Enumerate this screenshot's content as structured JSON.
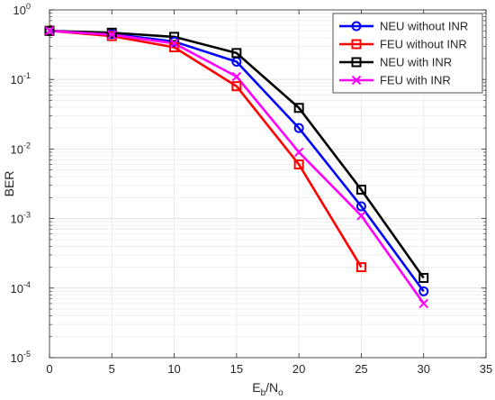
{
  "chart_data": {
    "type": "line",
    "title": "",
    "xlabel": {
      "main": "E",
      "sub1": "b",
      "mid": "/N",
      "sub2": "o"
    },
    "ylabel": "BER",
    "xlim": [
      0,
      35
    ],
    "ylim": [
      1e-05,
      1
    ],
    "yscale": "log",
    "grid": true,
    "legend_position": "top-right",
    "x_ticks": [
      0,
      5,
      10,
      15,
      20,
      25,
      30,
      35
    ],
    "x_tick_labels": [
      "0",
      "5",
      "10",
      "15",
      "20",
      "25",
      "30",
      "35"
    ],
    "y_ticks": [
      {
        "value": 1e-05,
        "base": "10",
        "exp": "-5"
      },
      {
        "value": 0.0001,
        "base": "10",
        "exp": "-4"
      },
      {
        "value": 0.001,
        "base": "10",
        "exp": "-3"
      },
      {
        "value": 0.01,
        "base": "10",
        "exp": "-2"
      },
      {
        "value": 0.1,
        "base": "10",
        "exp": "-1"
      },
      {
        "value": 1,
        "base": "10",
        "exp": "0"
      }
    ],
    "series": [
      {
        "name": "NEU without INR",
        "color": "#0000ff",
        "marker": "circle",
        "x": [
          0,
          5,
          10,
          15,
          20,
          25,
          30
        ],
        "y": [
          0.5,
          0.45,
          0.35,
          0.18,
          0.02,
          0.0015,
          9e-05
        ]
      },
      {
        "name": "FEU without INR",
        "color": "#ff0000",
        "marker": "square",
        "x": [
          0,
          5,
          10,
          15,
          20,
          25
        ],
        "y": [
          0.5,
          0.42,
          0.29,
          0.08,
          0.006,
          0.0002
        ]
      },
      {
        "name": "NEU with INR",
        "color": "#000000",
        "marker": "square",
        "x": [
          0,
          5,
          10,
          15,
          20,
          25,
          30
        ],
        "y": [
          0.5,
          0.47,
          0.41,
          0.24,
          0.039,
          0.0026,
          0.00014
        ]
      },
      {
        "name": "FEU with INR",
        "color": "#ff00ff",
        "marker": "x",
        "x": [
          0,
          5,
          10,
          15,
          20,
          25,
          30
        ],
        "y": [
          0.5,
          0.44,
          0.33,
          0.11,
          0.009,
          0.0011,
          6e-05
        ]
      }
    ]
  }
}
